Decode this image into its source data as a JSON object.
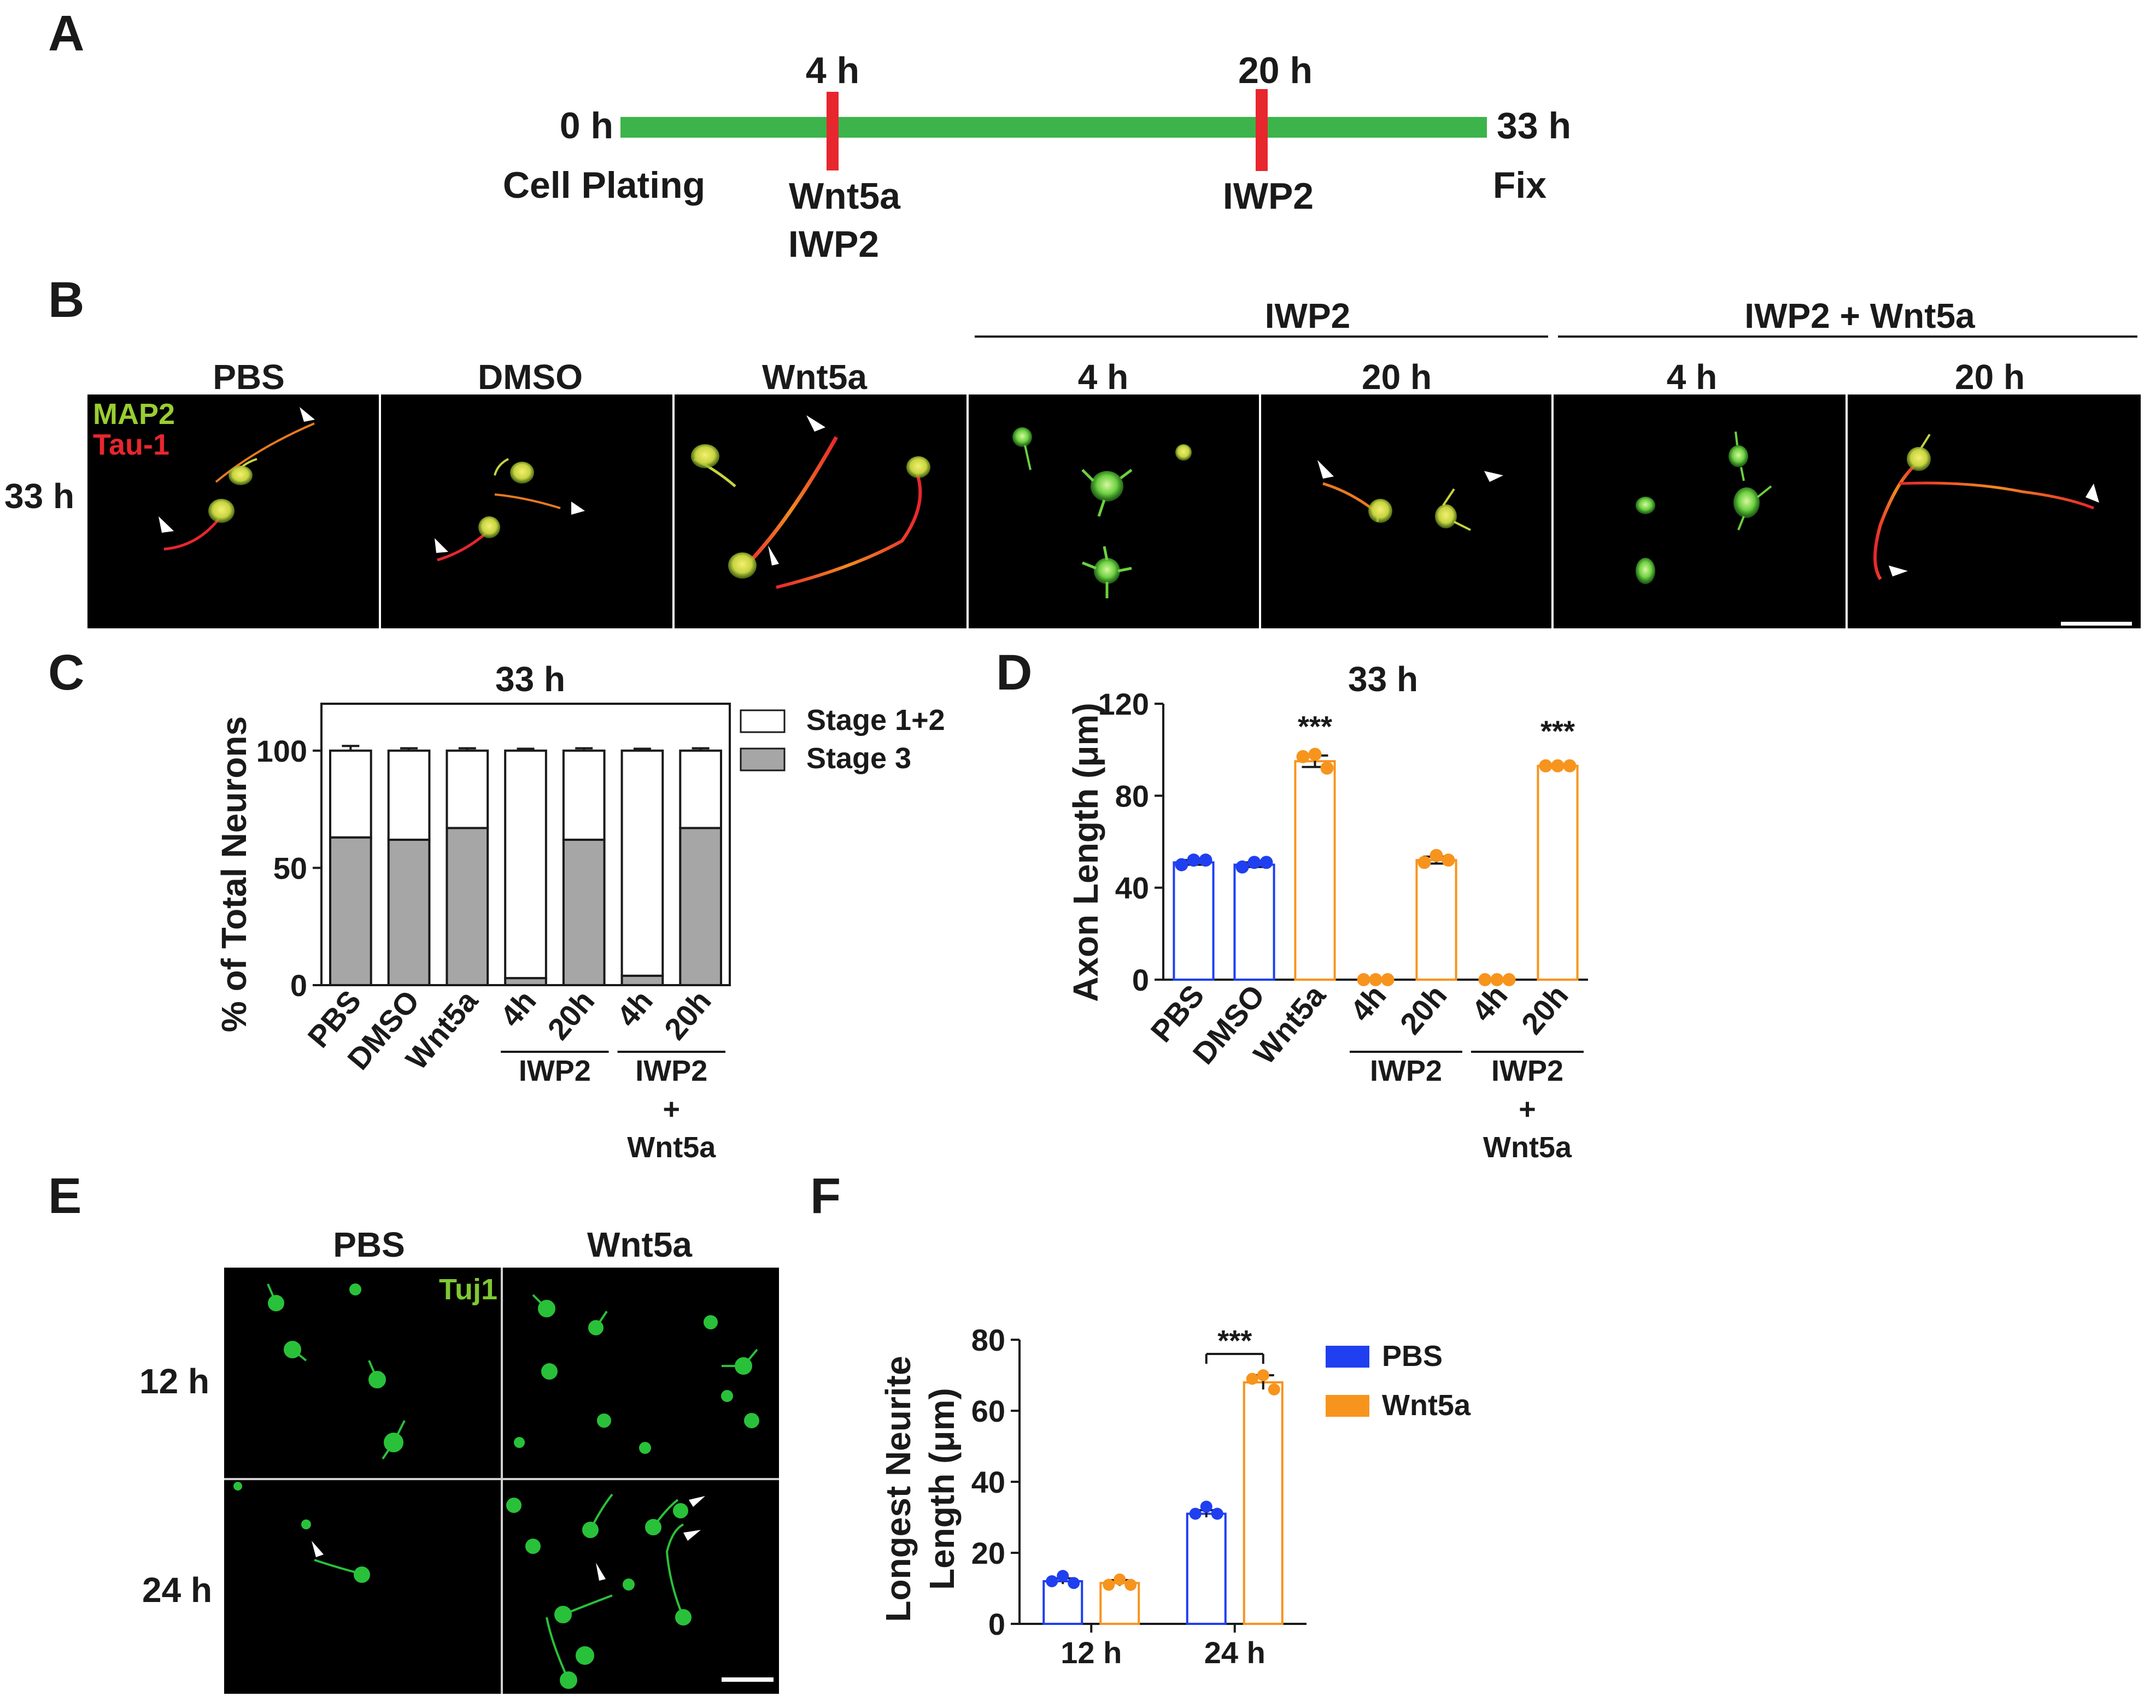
{
  "panels": {
    "A": "A",
    "B": "B",
    "C": "C",
    "D": "D",
    "E": "E",
    "F": "F"
  },
  "timeline": {
    "start": "0 h",
    "end": "33 h",
    "mark1": "4 h",
    "mark2": "20 h",
    "start_event": "Cell Plating",
    "end_event": "Fix",
    "mark1_events": [
      "Wnt5a",
      "IWP2"
    ],
    "mark2_events": [
      "IWP2"
    ],
    "colors": {
      "line": "#3cb44b",
      "marker": "#e8262e"
    }
  },
  "panel_b": {
    "row_label": "33 h",
    "channels": [
      "MAP2",
      "Tau-1"
    ],
    "channel_colors": [
      "#9acd32",
      "#e8262e"
    ],
    "group_labels": [
      "IWP2",
      "IWP2 + Wnt5a"
    ],
    "column_labels": [
      "PBS",
      "DMSO",
      "Wnt5a",
      "4 h",
      "20 h",
      "4 h",
      "20 h"
    ]
  },
  "panel_e": {
    "column_labels": [
      "PBS",
      "Wnt5a"
    ],
    "row_labels": [
      "12 h",
      "24 h"
    ],
    "stain": "Tuj1",
    "stain_color": "#7ec832"
  },
  "chart_data": [
    {
      "id": "C",
      "type": "bar",
      "stacked": true,
      "title": "33 h",
      "ylabel": "% of Total Neurons",
      "ylim": [
        0,
        120
      ],
      "yticks": [
        0,
        50,
        100
      ],
      "categories": [
        "PBS",
        "DMSO",
        "Wnt5a",
        "4h",
        "20h",
        "4h",
        "20h"
      ],
      "groups": [
        {
          "label": "IWP2",
          "from": 3,
          "to": 4
        },
        {
          "label": "IWP2\n+\nWnt5a",
          "from": 5,
          "to": 6
        }
      ],
      "series": [
        {
          "name": "Stage 3",
          "color": "#a6a6a6",
          "values": [
            63,
            62,
            67,
            3,
            62,
            4,
            67
          ],
          "errors": [
            2,
            1.5,
            1.5,
            0.8,
            1.5,
            0.8,
            1.5
          ]
        },
        {
          "name": "Stage 1+2",
          "color": "#ffffff",
          "values": [
            37,
            38,
            33,
            97,
            38,
            96,
            33
          ],
          "errors": [
            2,
            1,
            1,
            0.8,
            1,
            0.8,
            1
          ]
        }
      ],
      "legend": "top-right"
    },
    {
      "id": "D",
      "type": "bar",
      "title": "33 h",
      "ylabel": "Axon Length (μm)",
      "ylim": [
        0,
        120
      ],
      "yticks": [
        0,
        40,
        80,
        120
      ],
      "categories": [
        "PBS",
        "DMSO",
        "Wnt5a",
        "4h",
        "20h",
        "4h",
        "20h"
      ],
      "groups": [
        {
          "label": "IWP2",
          "from": 3,
          "to": 4
        },
        {
          "label": "IWP2\n+\nWnt5a",
          "from": 5,
          "to": 6
        }
      ],
      "values": [
        51,
        50,
        95,
        0,
        52,
        0,
        93
      ],
      "errors": [
        1,
        1,
        2.5,
        0,
        1.5,
        0,
        0.5
      ],
      "points": [
        [
          50,
          52,
          52
        ],
        [
          49,
          51,
          51
        ],
        [
          97,
          98,
          92
        ],
        [
          0,
          0,
          0
        ],
        [
          51,
          54,
          52
        ],
        [
          0,
          0,
          0
        ],
        [
          93,
          93,
          93
        ]
      ],
      "colors": [
        "#1f3ff0",
        "#1f3ff0",
        "#f7941d",
        "#f7941d",
        "#f7941d",
        "#f7941d",
        "#f7941d"
      ],
      "annotations": [
        "",
        "",
        "***",
        "",
        "",
        "",
        "***"
      ]
    },
    {
      "id": "F",
      "type": "bar",
      "xlabel": "",
      "ylabel": "Longest Neurite\nLength (μm)",
      "ylim": [
        0,
        80
      ],
      "yticks": [
        0,
        20,
        40,
        60,
        80
      ],
      "categories": [
        "12 h",
        "24 h"
      ],
      "series": [
        {
          "name": "PBS",
          "color": "#1f3ff0",
          "values": [
            12,
            31
          ],
          "errors": [
            0.8,
            1
          ],
          "points": [
            [
              12,
              13.5,
              11.5
            ],
            [
              31,
              33,
              31
            ]
          ]
        },
        {
          "name": "Wnt5a",
          "color": "#f7941d",
          "values": [
            11.5,
            68
          ],
          "errors": [
            0.8,
            2
          ],
          "points": [
            [
              11,
              12.5,
              11
            ],
            [
              69,
              70,
              66
            ]
          ]
        }
      ],
      "significance": {
        "label": "***",
        "category": "24 h"
      },
      "legend": "right"
    }
  ]
}
